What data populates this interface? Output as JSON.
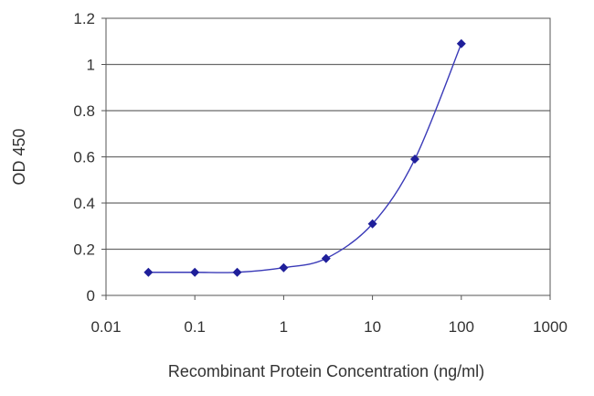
{
  "chart_data": {
    "type": "line",
    "title": "",
    "xlabel": "Recombinant Protein Concentration (ng/ml)",
    "ylabel": "OD 450",
    "x_scale": "log",
    "xlim": [
      0.01,
      1000
    ],
    "ylim": [
      0,
      1.2
    ],
    "x_ticks": [
      "0.01",
      "0.1",
      "1",
      "10",
      "100",
      "1000"
    ],
    "y_ticks": [
      "0",
      "0.2",
      "0.4",
      "0.6",
      "0.8",
      "1",
      "1.2"
    ],
    "grid": "horizontal",
    "legend": "none",
    "series": [
      {
        "color": "#1f1f9a",
        "marker": "diamond",
        "x": [
          0.03,
          0.1,
          0.3,
          1,
          3,
          10,
          30,
          100
        ],
        "y": [
          0.1,
          0.1,
          0.1,
          0.12,
          0.16,
          0.31,
          0.59,
          1.09
        ]
      }
    ]
  }
}
